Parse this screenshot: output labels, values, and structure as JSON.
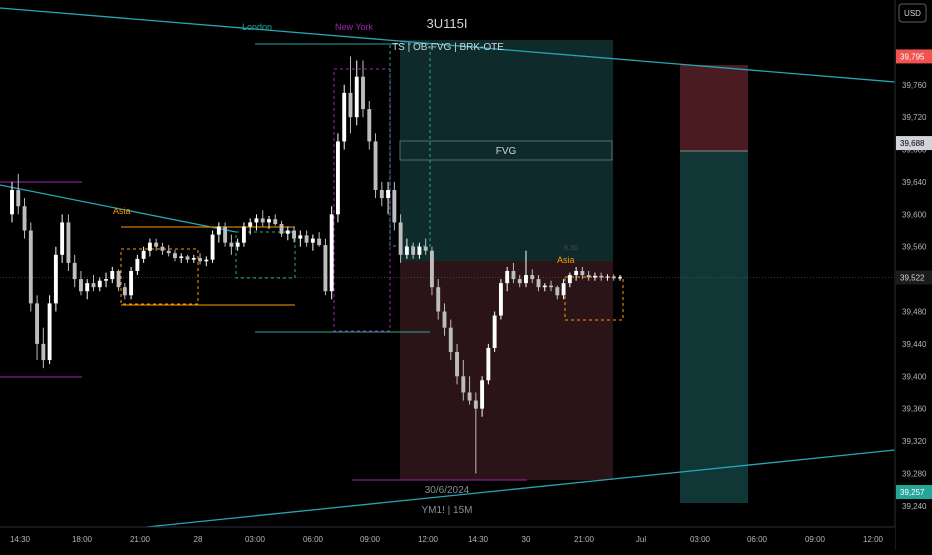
{
  "header": {
    "symbol": "3U115I",
    "currency": "USD",
    "strategy_label": "TS  |  OB-FVG  |  BRK-OTE",
    "watermark_date": "30/6/2024",
    "watermark_symbol": "YM1!  |  15M"
  },
  "sessions": {
    "london": "London",
    "newyork": "New York",
    "asia_left": "Asia",
    "asia_right": "Asia"
  },
  "labels": {
    "fvg": "FVG",
    "small_tag": "8.30"
  },
  "colors": {
    "background": "#000000",
    "up_candle": "#ffffff",
    "down_candle": "#bdbdbd",
    "trendline": "#26a6b5",
    "london": "#26a69a",
    "newyork": "#9c27b0",
    "asia": "#ff9800",
    "long_zone": "#0f2a2a",
    "short_zone": "#2a1418",
    "stop_zone": "#4a1c22",
    "target_zone": "#103636"
  },
  "price_tags": [
    {
      "value": "39,795",
      "color": "#ef5350",
      "text_color": "#ffffff"
    },
    {
      "value": "39,688",
      "color": "#d1d4dc",
      "text_color": "#000000"
    },
    {
      "value": "39,522",
      "color": "#1c1c1c",
      "text_color": "#d1d4dc"
    },
    {
      "value": "39,257",
      "color": "#26a69a",
      "text_color": "#ffffff"
    }
  ],
  "chart_data": {
    "type": "candlestick",
    "title": "3U115I",
    "timeframe": "15M",
    "ylim": [
      39220,
      39840
    ],
    "y_ticks": [
      "39,800",
      "39,760",
      "39,720",
      "39,680",
      "39,640",
      "39,600",
      "39,560",
      "39,520",
      "39,480",
      "39,440",
      "39,400",
      "39,360",
      "39,320",
      "39,280",
      "39,240"
    ],
    "x_ticks": [
      "14:30",
      "18:00",
      "21:00",
      "28",
      "03:00",
      "06:00",
      "09:00",
      "12:00",
      "14:30",
      "30",
      "21:00",
      "Jul",
      "03:00",
      "06:00",
      "09:00",
      "12:00"
    ],
    "candles": [
      {
        "o": 39600,
        "h": 39640,
        "l": 39590,
        "c": 39630
      },
      {
        "o": 39630,
        "h": 39650,
        "l": 39600,
        "c": 39610
      },
      {
        "o": 39610,
        "h": 39620,
        "l": 39570,
        "c": 39580
      },
      {
        "o": 39580,
        "h": 39590,
        "l": 39480,
        "c": 39490
      },
      {
        "o": 39490,
        "h": 39500,
        "l": 39420,
        "c": 39440
      },
      {
        "o": 39440,
        "h": 39460,
        "l": 39410,
        "c": 39420
      },
      {
        "o": 39420,
        "h": 39500,
        "l": 39415,
        "c": 39490
      },
      {
        "o": 39490,
        "h": 39560,
        "l": 39480,
        "c": 39550
      },
      {
        "o": 39550,
        "h": 39600,
        "l": 39540,
        "c": 39590
      },
      {
        "o": 39590,
        "h": 39600,
        "l": 39530,
        "c": 39540
      },
      {
        "o": 39540,
        "h": 39550,
        "l": 39510,
        "c": 39520
      },
      {
        "o": 39520,
        "h": 39530,
        "l": 39500,
        "c": 39505
      },
      {
        "o": 39505,
        "h": 39520,
        "l": 39495,
        "c": 39515
      },
      {
        "o": 39515,
        "h": 39525,
        "l": 39505,
        "c": 39510
      },
      {
        "o": 39510,
        "h": 39522,
        "l": 39505,
        "c": 39518
      },
      {
        "o": 39518,
        "h": 39528,
        "l": 39510,
        "c": 39520
      },
      {
        "o": 39520,
        "h": 39535,
        "l": 39515,
        "c": 39530
      },
      {
        "o": 39530,
        "h": 39532,
        "l": 39505,
        "c": 39510
      },
      {
        "o": 39510,
        "h": 39515,
        "l": 39495,
        "c": 39500
      },
      {
        "o": 39500,
        "h": 39535,
        "l": 39495,
        "c": 39530
      },
      {
        "o": 39530,
        "h": 39550,
        "l": 39525,
        "c": 39545
      },
      {
        "o": 39545,
        "h": 39560,
        "l": 39540,
        "c": 39555
      },
      {
        "o": 39555,
        "h": 39570,
        "l": 39548,
        "c": 39565
      },
      {
        "o": 39565,
        "h": 39570,
        "l": 39555,
        "c": 39560
      },
      {
        "o": 39560,
        "h": 39565,
        "l": 39550,
        "c": 39555
      },
      {
        "o": 39555,
        "h": 39562,
        "l": 39548,
        "c": 39552
      },
      {
        "o": 39552,
        "h": 39556,
        "l": 39542,
        "c": 39546
      },
      {
        "o": 39546,
        "h": 39552,
        "l": 39540,
        "c": 39548
      },
      {
        "o": 39548,
        "h": 39550,
        "l": 39540,
        "c": 39544
      },
      {
        "o": 39544,
        "h": 39550,
        "l": 39540,
        "c": 39546
      },
      {
        "o": 39546,
        "h": 39552,
        "l": 39538,
        "c": 39542
      },
      {
        "o": 39542,
        "h": 39548,
        "l": 39536,
        "c": 39544
      },
      {
        "o": 39544,
        "h": 39580,
        "l": 39540,
        "c": 39575
      },
      {
        "o": 39575,
        "h": 39590,
        "l": 39565,
        "c": 39585
      },
      {
        "o": 39585,
        "h": 39590,
        "l": 39560,
        "c": 39565
      },
      {
        "o": 39565,
        "h": 39575,
        "l": 39550,
        "c": 39560
      },
      {
        "o": 39560,
        "h": 39570,
        "l": 39555,
        "c": 39565
      },
      {
        "o": 39565,
        "h": 39590,
        "l": 39560,
        "c": 39585
      },
      {
        "o": 39585,
        "h": 39595,
        "l": 39575,
        "c": 39590
      },
      {
        "o": 39590,
        "h": 39600,
        "l": 39580,
        "c": 39595
      },
      {
        "o": 39595,
        "h": 39605,
        "l": 39585,
        "c": 39590
      },
      {
        "o": 39590,
        "h": 39598,
        "l": 39582,
        "c": 39594
      },
      {
        "o": 39594,
        "h": 39600,
        "l": 39586,
        "c": 39588
      },
      {
        "o": 39588,
        "h": 39592,
        "l": 39572,
        "c": 39576
      },
      {
        "o": 39576,
        "h": 39585,
        "l": 39568,
        "c": 39580
      },
      {
        "o": 39580,
        "h": 39585,
        "l": 39565,
        "c": 39570
      },
      {
        "o": 39570,
        "h": 39580,
        "l": 39560,
        "c": 39574
      },
      {
        "o": 39574,
        "h": 39580,
        "l": 39560,
        "c": 39565
      },
      {
        "o": 39565,
        "h": 39575,
        "l": 39555,
        "c": 39570
      },
      {
        "o": 39570,
        "h": 39578,
        "l": 39560,
        "c": 39562
      },
      {
        "o": 39562,
        "h": 39570,
        "l": 39500,
        "c": 39505
      },
      {
        "o": 39505,
        "h": 39610,
        "l": 39495,
        "c": 39600
      },
      {
        "o": 39600,
        "h": 39700,
        "l": 39590,
        "c": 39690
      },
      {
        "o": 39690,
        "h": 39760,
        "l": 39680,
        "c": 39750
      },
      {
        "o": 39750,
        "h": 39795,
        "l": 39700,
        "c": 39720
      },
      {
        "o": 39720,
        "h": 39790,
        "l": 39710,
        "c": 39770
      },
      {
        "o": 39770,
        "h": 39790,
        "l": 39720,
        "c": 39730
      },
      {
        "o": 39730,
        "h": 39740,
        "l": 39680,
        "c": 39690
      },
      {
        "o": 39690,
        "h": 39700,
        "l": 39620,
        "c": 39630
      },
      {
        "o": 39630,
        "h": 39640,
        "l": 39610,
        "c": 39620
      },
      {
        "o": 39620,
        "h": 39640,
        "l": 39600,
        "c": 39630
      },
      {
        "o": 39630,
        "h": 39640,
        "l": 39580,
        "c": 39590
      },
      {
        "o": 39590,
        "h": 39600,
        "l": 39540,
        "c": 39550
      },
      {
        "o": 39550,
        "h": 39570,
        "l": 39545,
        "c": 39560
      },
      {
        "o": 39560,
        "h": 39565,
        "l": 39545,
        "c": 39550
      },
      {
        "o": 39550,
        "h": 39565,
        "l": 39545,
        "c": 39560
      },
      {
        "o": 39560,
        "h": 39570,
        "l": 39550,
        "c": 39555
      },
      {
        "o": 39555,
        "h": 39560,
        "l": 39500,
        "c": 39510
      },
      {
        "o": 39510,
        "h": 39520,
        "l": 39470,
        "c": 39480
      },
      {
        "o": 39480,
        "h": 39490,
        "l": 39450,
        "c": 39460
      },
      {
        "o": 39460,
        "h": 39470,
        "l": 39420,
        "c": 39430
      },
      {
        "o": 39430,
        "h": 39440,
        "l": 39390,
        "c": 39400
      },
      {
        "o": 39400,
        "h": 39420,
        "l": 39370,
        "c": 39380
      },
      {
        "o": 39380,
        "h": 39400,
        "l": 39365,
        "c": 39370
      },
      {
        "o": 39370,
        "h": 39380,
        "l": 39280,
        "c": 39360
      },
      {
        "o": 39360,
        "h": 39400,
        "l": 39350,
        "c": 39395
      },
      {
        "o": 39395,
        "h": 39440,
        "l": 39390,
        "c": 39435
      },
      {
        "o": 39435,
        "h": 39480,
        "l": 39430,
        "c": 39475
      },
      {
        "o": 39475,
        "h": 39520,
        "l": 39470,
        "c": 39515
      },
      {
        "o": 39515,
        "h": 39535,
        "l": 39505,
        "c": 39530
      },
      {
        "o": 39530,
        "h": 39540,
        "l": 39515,
        "c": 39520
      },
      {
        "o": 39520,
        "h": 39525,
        "l": 39510,
        "c": 39515
      },
      {
        "o": 39515,
        "h": 39555,
        "l": 39510,
        "c": 39525
      },
      {
        "o": 39525,
        "h": 39532,
        "l": 39515,
        "c": 39520
      },
      {
        "o": 39520,
        "h": 39525,
        "l": 39505,
        "c": 39510
      },
      {
        "o": 39510,
        "h": 39515,
        "l": 39505,
        "c": 39512
      },
      {
        "o": 39512,
        "h": 39518,
        "l": 39505,
        "c": 39510
      },
      {
        "o": 39510,
        "h": 39512,
        "l": 39495,
        "c": 39500
      },
      {
        "o": 39500,
        "h": 39520,
        "l": 39495,
        "c": 39515
      },
      {
        "o": 39515,
        "h": 39528,
        "l": 39510,
        "c": 39525
      },
      {
        "o": 39525,
        "h": 39535,
        "l": 39518,
        "c": 39530
      },
      {
        "o": 39530,
        "h": 39535,
        "l": 39520,
        "c": 39525
      },
      {
        "o": 39525,
        "h": 39530,
        "l": 39518,
        "c": 39522
      },
      {
        "o": 39522,
        "h": 39528,
        "l": 39518,
        "c": 39524
      },
      {
        "o": 39524,
        "h": 39528,
        "l": 39518,
        "c": 39522
      },
      {
        "o": 39522,
        "h": 39526,
        "l": 39518,
        "c": 39523
      },
      {
        "o": 39523,
        "h": 39526,
        "l": 39518,
        "c": 39521
      },
      {
        "o": 39521,
        "h": 39525,
        "l": 39518,
        "c": 39522
      }
    ],
    "last_price": 39522
  }
}
